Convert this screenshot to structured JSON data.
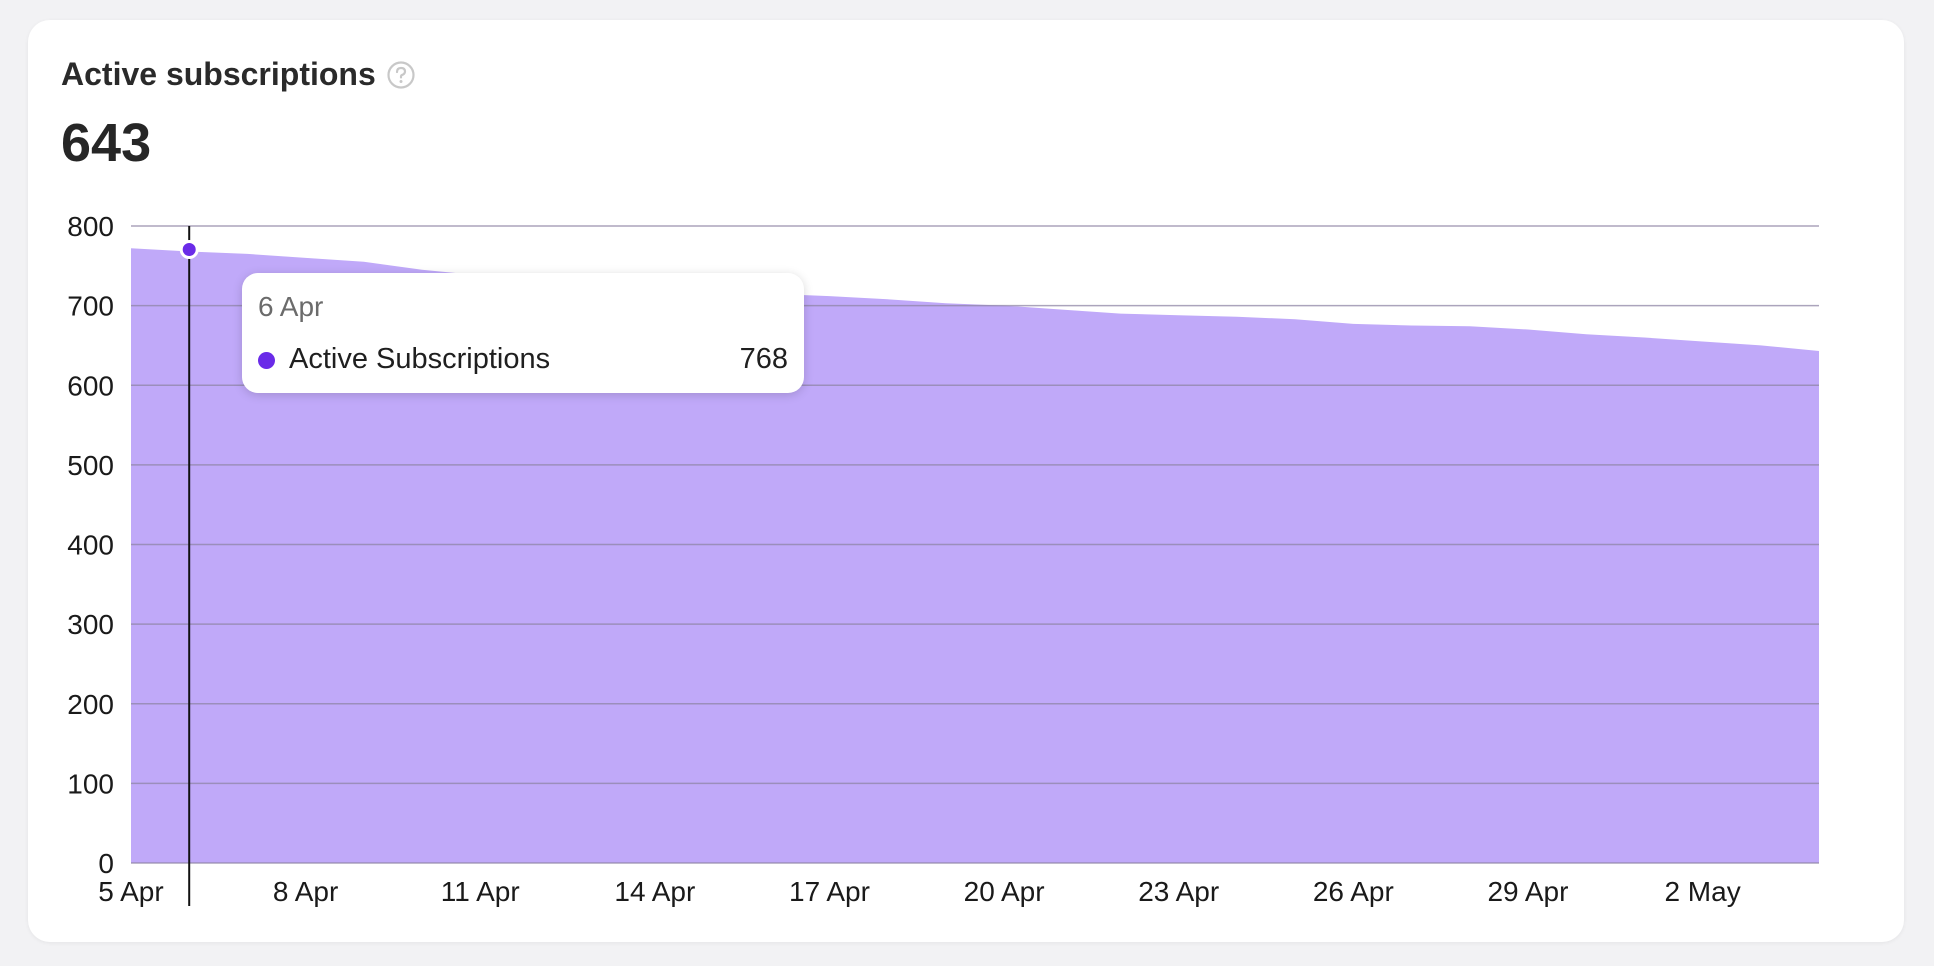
{
  "header": {
    "title": "Active subscriptions",
    "help_icon": "question-circle-icon",
    "current_value": "643"
  },
  "tooltip": {
    "date": "6 Apr",
    "series_name": "Active Subscriptions",
    "value": "768"
  },
  "colors": {
    "area_fill": "#c0a9f9",
    "series_dot": "#6a2be8",
    "gridline": "#8f86a6",
    "crosshair": "#111111"
  },
  "chart_data": {
    "type": "area",
    "x": [
      "5 Apr",
      "6 Apr",
      "7 Apr",
      "8 Apr",
      "9 Apr",
      "10 Apr",
      "11 Apr",
      "12 Apr",
      "13 Apr",
      "14 Apr",
      "15 Apr",
      "16 Apr",
      "17 Apr",
      "18 Apr",
      "19 Apr",
      "20 Apr",
      "21 Apr",
      "22 Apr",
      "23 Apr",
      "24 Apr",
      "25 Apr",
      "26 Apr",
      "27 Apr",
      "28 Apr",
      "29 Apr",
      "30 Apr",
      "1 May",
      "2 May",
      "3 May",
      "4 May"
    ],
    "series": [
      {
        "name": "Active Subscriptions",
        "values": [
          772,
          768,
          765,
          760,
          755,
          745,
          738,
          733,
          728,
          723,
          718,
          715,
          712,
          708,
          703,
          700,
          695,
          690,
          688,
          686,
          683,
          677,
          675,
          674,
          670,
          664,
          660,
          655,
          650,
          643
        ]
      }
    ],
    "x_tick_labels": [
      "5 Apr",
      "8 Apr",
      "11 Apr",
      "14 Apr",
      "17 Apr",
      "20 Apr",
      "23 Apr",
      "26 Apr",
      "29 Apr",
      "2 May"
    ],
    "y_ticks": [
      0,
      100,
      200,
      300,
      400,
      500,
      600,
      700,
      800
    ],
    "ylim": [
      0,
      800
    ],
    "grid": true,
    "hover_index": 1
  }
}
